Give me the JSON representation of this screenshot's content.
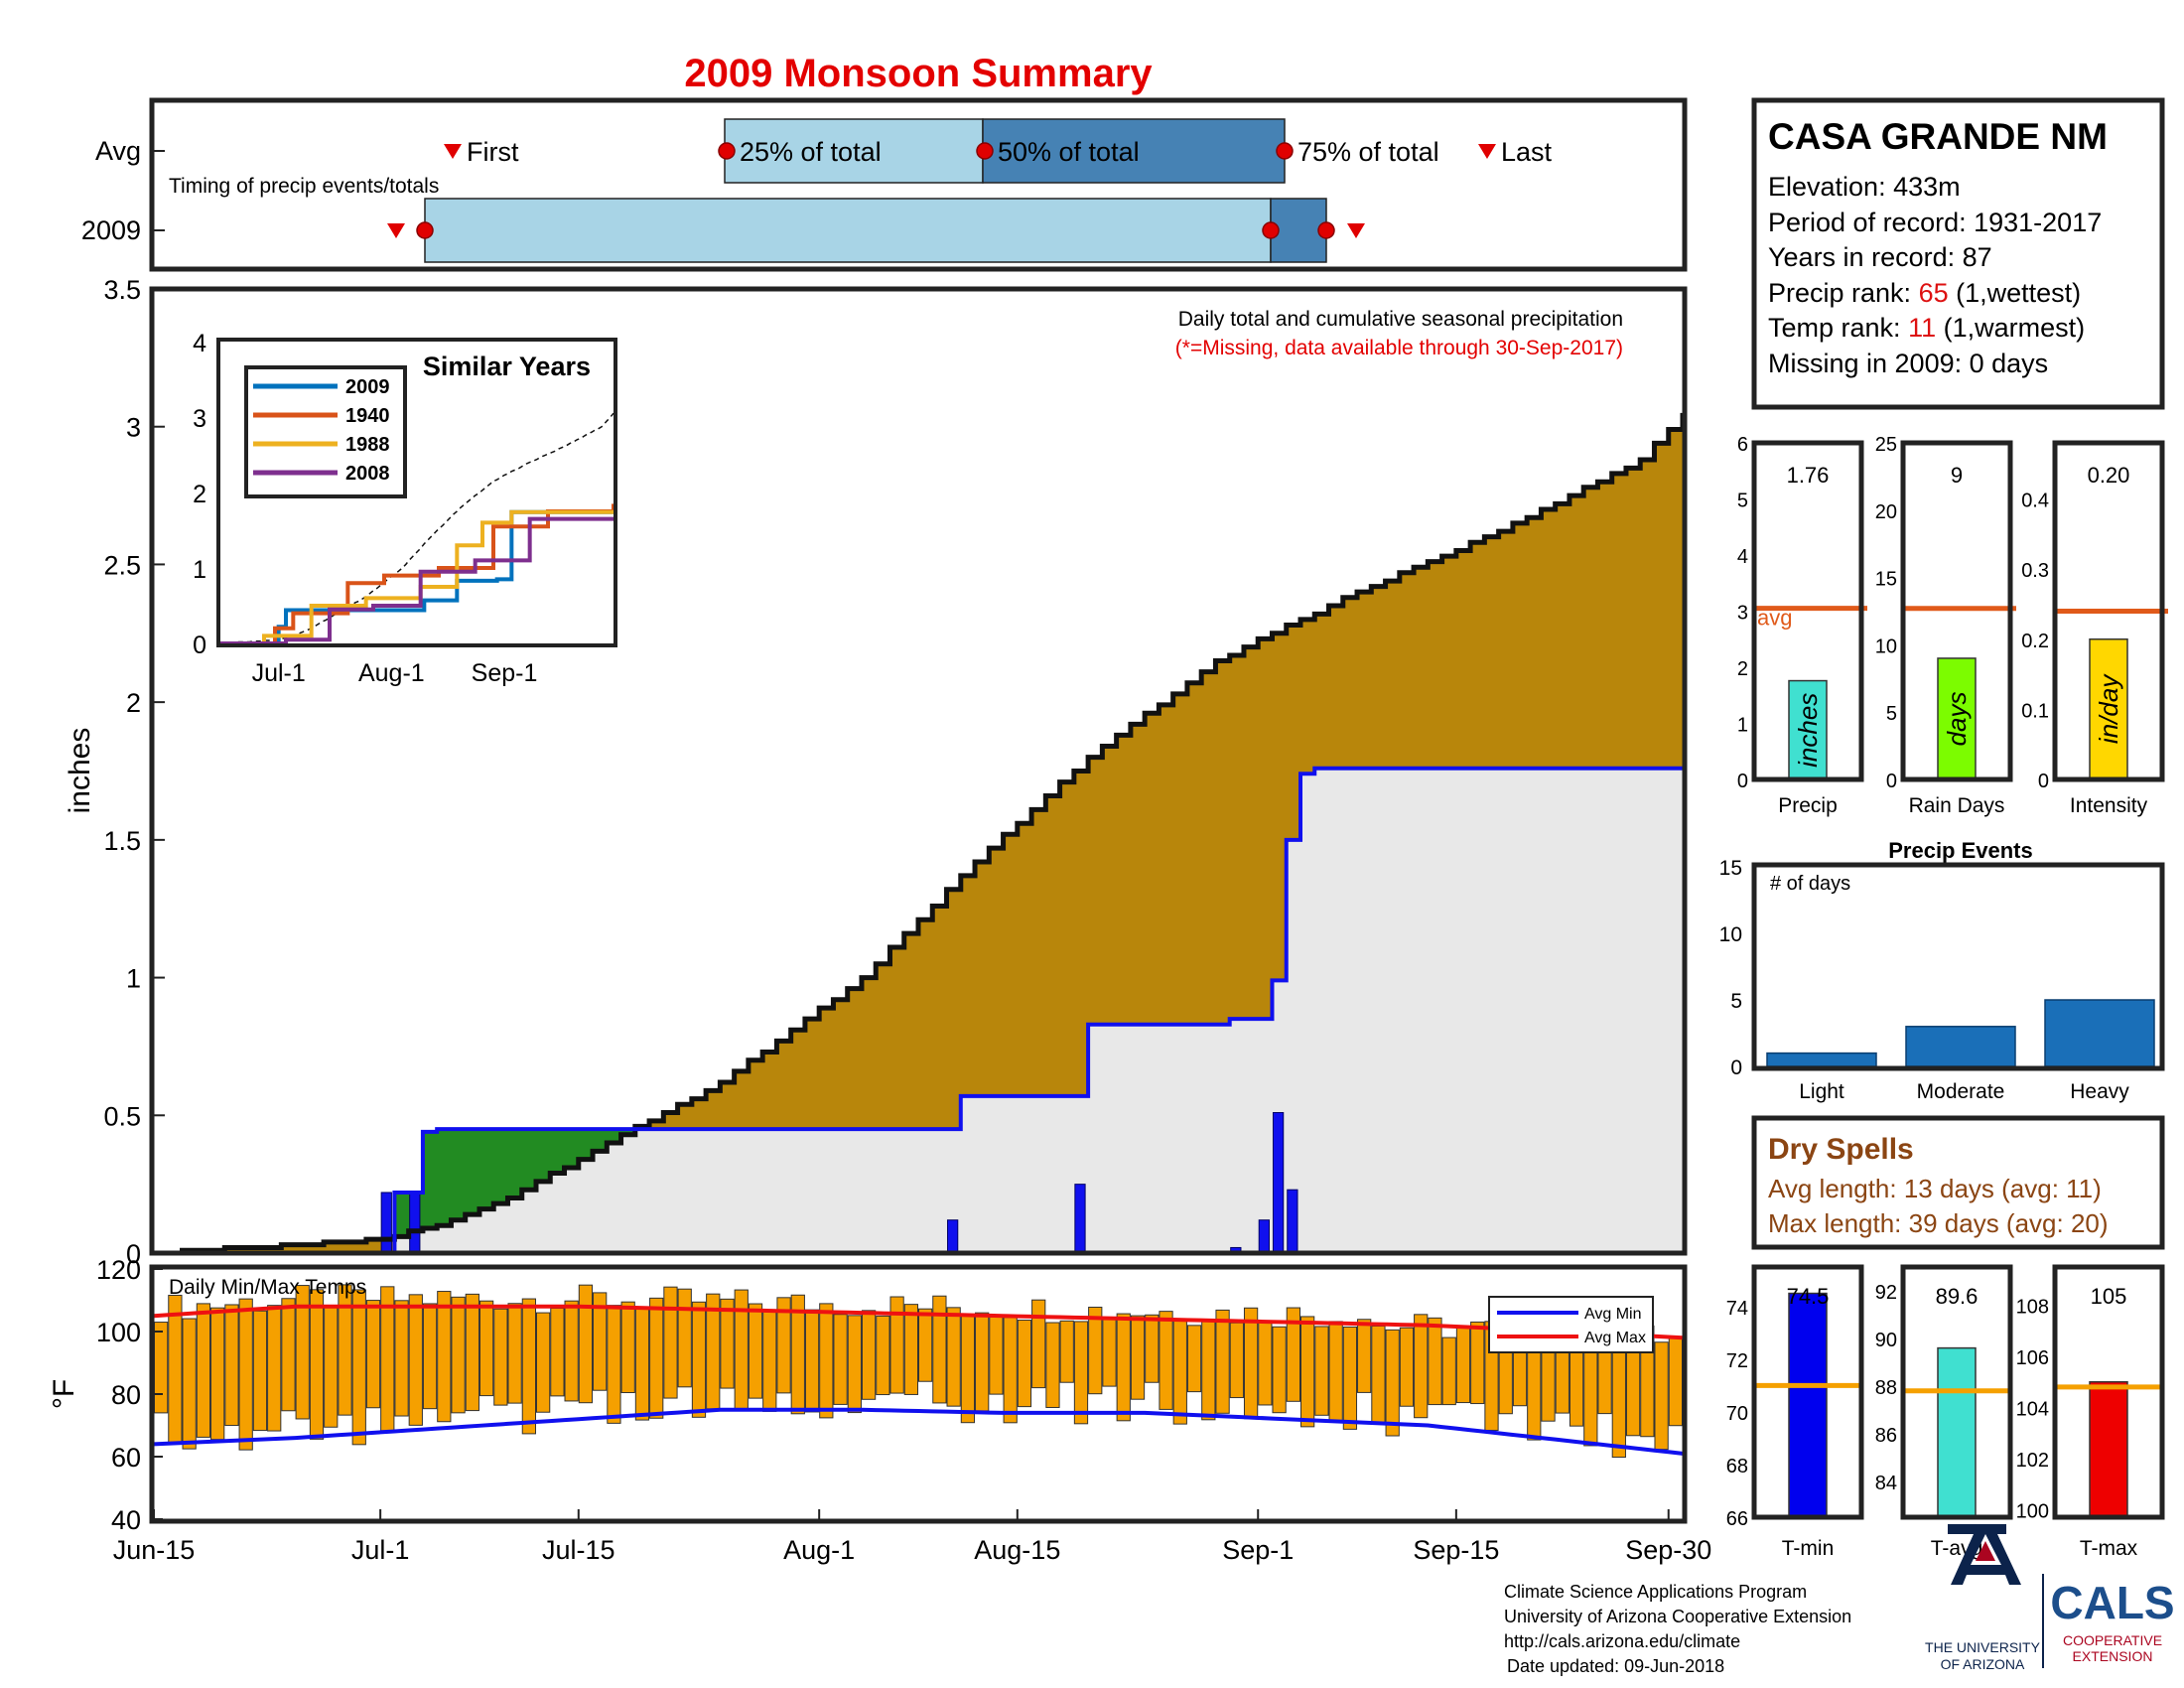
{
  "title": "2009 Monsoon Summary",
  "timing": {
    "row_avg": "Avg",
    "row_year": "2009",
    "caption": "Timing of precip events/totals",
    "first": "First",
    "p25": "25% of total",
    "p50": "50% of total",
    "p75": "75% of total",
    "last": "Last"
  },
  "station": {
    "name": "CASA GRANDE NM",
    "elevation": "Elevation: 433m",
    "period": "Period of record: 1931-2017",
    "years": "Years in record: 87",
    "precip_rank_label": "Precip rank: ",
    "precip_rank_value": "65",
    "precip_rank_note": " (1,wettest)",
    "temp_rank_label": "Temp rank: ",
    "temp_rank_value": "11",
    "temp_rank_note": " (1,warmest)",
    "missing": "Missing in 2009: 0 days"
  },
  "main": {
    "ylabel": "inches",
    "note1": "Daily total and cumulative seasonal precipitation",
    "note2": "(*=Missing, data available through 30-Sep-2017)",
    "yticks": [
      "0",
      "0.5",
      "1",
      "1.5",
      "2",
      "2.5",
      "3",
      "3.5"
    ],
    "xticks": [
      "Jun-15",
      "Jul-1",
      "Jul-15",
      "Aug-1",
      "Aug-15",
      "Sep-1",
      "Sep-15",
      "Sep-30"
    ]
  },
  "inset": {
    "title": "Similar Years",
    "yticks": [
      "0",
      "1",
      "2",
      "3",
      "4"
    ],
    "xticks": [
      "Jul-1",
      "Aug-1",
      "Sep-1"
    ],
    "legend": [
      "2009",
      "1940",
      "1988",
      "2008"
    ]
  },
  "temps": {
    "label": "Daily Min/Max Temps",
    "ylabel": "°F",
    "yticks": [
      "40",
      "60",
      "80",
      "100",
      "120"
    ],
    "legend_min": "Avg Min",
    "legend_max": "Avg Max"
  },
  "mini": {
    "precip": {
      "value": "1.76",
      "unit": "inches",
      "label": "Precip",
      "avg_label": "avg",
      "yticks": [
        "0",
        "1",
        "2",
        "3",
        "4",
        "5",
        "6"
      ]
    },
    "raindays": {
      "value": "9",
      "unit": "days",
      "label": "Rain Days",
      "yticks": [
        "0",
        "5",
        "10",
        "15",
        "20",
        "25"
      ]
    },
    "intensity": {
      "value": "0.20",
      "unit": "in/day",
      "label": "Intensity",
      "yticks": [
        "0",
        "0.1",
        "0.2",
        "0.3",
        "0.4"
      ]
    }
  },
  "events": {
    "title": "Precip Events",
    "ylabel": "# of days",
    "yticks": [
      "0",
      "5",
      "10",
      "15"
    ],
    "cats": [
      "Light",
      "Moderate",
      "Heavy"
    ]
  },
  "dry": {
    "title": "Dry Spells",
    "avg": "Avg length: 13 days (avg: 11)",
    "max": "Max length: 39 days (avg: 20)"
  },
  "tbars": {
    "tmin": {
      "value": "74.5",
      "label": "T-min",
      "yticks": [
        "66",
        "68",
        "70",
        "72",
        "74"
      ]
    },
    "tavg": {
      "value": "89.6",
      "label": "T-avg",
      "yticks": [
        "84",
        "86",
        "88",
        "90",
        "92"
      ]
    },
    "tmax": {
      "value": "105",
      "label": "T-max",
      "yticks": [
        "100",
        "102",
        "104",
        "106",
        "108"
      ]
    }
  },
  "footer": {
    "line1": "Climate Science Applications Program",
    "line2": "University of Arizona Cooperative Extension",
    "line3": "http://cals.arizona.edu/climate",
    "line4": "Date updated: 09-Jun-2018",
    "ua1": "THE UNIVERSITY",
    "ua2": "OF ARIZONA",
    "cals": "CALS",
    "cals1": "COOPERATIVE",
    "cals2": "EXTENSION"
  },
  "colors": {
    "avg_fill": "#b8860b",
    "year_fill": "#e8e8e8",
    "surplus_fill": "#228b22",
    "year_line": "#1010ee",
    "bar_orange": "#f5a000",
    "avg_min": "#1010ee",
    "avg_max": "#ee1111",
    "rank_red": "#dd1111",
    "dry_brown": "#8b4513",
    "events_bar": "#1a6fb8",
    "timing_light": "#a8d4e6",
    "timing_dark": "#4682b4"
  },
  "chart_data": [
    {
      "type": "area",
      "title": "Daily total and cumulative seasonal precipitation",
      "ylabel": "inches",
      "xlim": [
        "Jun-15",
        "Sep-30"
      ],
      "ylim": [
        0,
        3.5
      ],
      "series": [
        {
          "name": "Avg cumulative",
          "x": [
            0,
            10,
            16,
            20,
            25,
            32,
            40,
            50,
            58,
            66,
            75,
            85,
            95,
            105,
            108
          ],
          "y": [
            0,
            0.03,
            0.05,
            0.1,
            0.2,
            0.4,
            0.62,
            1.0,
            1.42,
            1.8,
            2.15,
            2.4,
            2.62,
            2.88,
            3.05
          ]
        },
        {
          "name": "2009 cumulative",
          "x": [
            0,
            16,
            17,
            18,
            19,
            20,
            21,
            56,
            57,
            65,
            66,
            75,
            76,
            78,
            79,
            80,
            81,
            82,
            108
          ],
          "y": [
            0,
            0,
            0.22,
            0.22,
            0.44,
            0.45,
            0.45,
            0.45,
            0.57,
            0.57,
            0.83,
            0.83,
            0.85,
            0.85,
            0.99,
            1.5,
            1.74,
            1.76,
            1.76
          ]
        }
      ],
      "daily_precip": {
        "days": [
          16,
          18,
          56,
          65,
          76,
          78,
          79,
          80
        ],
        "values": [
          0.22,
          0.22,
          0.12,
          0.25,
          0.02,
          0.12,
          0.51,
          0.23
        ]
      }
    },
    {
      "type": "line",
      "title": "Similar Years",
      "ylim": [
        0,
        4
      ],
      "xticks": [
        "Jul-1",
        "Aug-1",
        "Sep-1"
      ],
      "series": [
        {
          "name": "2009",
          "x": [
            0,
            16,
            18,
            56,
            65,
            76,
            80,
            108
          ],
          "y": [
            0,
            0.22,
            0.44,
            0.57,
            0.83,
            0.85,
            1.74,
            1.76
          ]
        },
        {
          "name": "1940",
          "x": [
            0,
            15,
            20,
            35,
            45,
            60,
            75,
            90,
            108
          ],
          "y": [
            0,
            0.2,
            0.4,
            0.8,
            0.9,
            1.0,
            1.55,
            1.75,
            1.85
          ]
        },
        {
          "name": "1988",
          "x": [
            0,
            12,
            25,
            40,
            55,
            65,
            72,
            80,
            108
          ],
          "y": [
            0,
            0.1,
            0.5,
            0.6,
            0.75,
            1.3,
            1.6,
            1.74,
            1.74
          ]
        },
        {
          "name": "2008",
          "x": [
            0,
            18,
            30,
            42,
            55,
            70,
            85,
            108
          ],
          "y": [
            0,
            0.05,
            0.45,
            0.5,
            0.95,
            1.1,
            1.65,
            1.65
          ]
        }
      ]
    },
    {
      "type": "bar",
      "title": "Daily Min/Max Temps",
      "ylabel": "°F",
      "ylim": [
        40,
        120
      ],
      "series": [
        {
          "name": "Avg Min",
          "x": [
            0,
            10,
            20,
            30,
            40,
            50,
            60,
            70,
            80,
            90,
            100,
            108
          ],
          "y": [
            64,
            66,
            69,
            72,
            75,
            75,
            74,
            74,
            72,
            70,
            65,
            61
          ]
        },
        {
          "name": "Avg Max",
          "x": [
            0,
            10,
            20,
            30,
            40,
            50,
            60,
            70,
            80,
            90,
            100,
            108
          ],
          "y": [
            105,
            108,
            108,
            108,
            107,
            106,
            105,
            104,
            103,
            102,
            100,
            98
          ]
        }
      ]
    },
    {
      "type": "bar",
      "categories": [
        "Precip",
        "Rain Days",
        "Intensity"
      ],
      "values": [
        1.76,
        9,
        0.2
      ],
      "avg": [
        3.05,
        12.7,
        0.24
      ]
    },
    {
      "type": "bar",
      "title": "Precip Events",
      "categories": [
        "Light",
        "Moderate",
        "Heavy"
      ],
      "values": [
        1,
        3,
        5
      ],
      "ylim": [
        0,
        15
      ]
    },
    {
      "type": "bar",
      "categories": [
        "T-min",
        "T-avg",
        "T-max"
      ],
      "values": [
        74.5,
        89.6,
        105
      ],
      "avg": [
        71,
        87.8,
        104.8
      ]
    }
  ]
}
